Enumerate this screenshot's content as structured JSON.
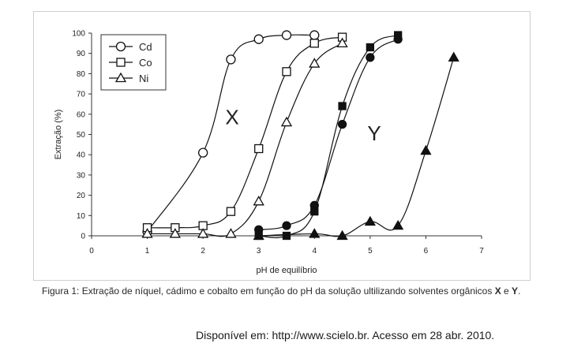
{
  "chart_data": {
    "type": "line",
    "xlabel": "pH de equilíbrio",
    "ylabel": "Extração (%)",
    "xlim": [
      0,
      7
    ],
    "ylim": [
      0,
      100
    ],
    "xticks": [
      0,
      1,
      2,
      3,
      4,
      5,
      6,
      7
    ],
    "yticks": [
      0,
      10,
      20,
      30,
      40,
      50,
      60,
      70,
      80,
      90,
      100
    ],
    "grid": false,
    "legend_position": "top-left",
    "legend": [
      {
        "name": "Cd",
        "marker": "circle-open"
      },
      {
        "name": "Co",
        "marker": "square-open"
      },
      {
        "name": "Ni",
        "marker": "triangle-open"
      }
    ],
    "group_labels": {
      "X": "X",
      "Y": "Y"
    },
    "series": [
      {
        "name": "Cd",
        "group": "X",
        "marker": "circle",
        "filled": false,
        "x": [
          1.0,
          2.0,
          2.5,
          3.0,
          3.5,
          4.0
        ],
        "y": [
          2,
          41,
          87,
          97,
          99,
          99
        ]
      },
      {
        "name": "Co",
        "group": "X",
        "marker": "square",
        "filled": false,
        "x": [
          1.0,
          1.5,
          2.0,
          2.5,
          3.0,
          3.5,
          4.0,
          4.5
        ],
        "y": [
          4,
          4,
          5,
          12,
          43,
          81,
          95,
          98
        ]
      },
      {
        "name": "Ni",
        "group": "X",
        "marker": "triangle",
        "filled": false,
        "x": [
          1.0,
          1.5,
          2.0,
          2.5,
          3.0,
          3.5,
          4.0,
          4.5
        ],
        "y": [
          1,
          1,
          1,
          1,
          17,
          56,
          85,
          95
        ]
      },
      {
        "name": "Cd",
        "group": "Y",
        "marker": "circle",
        "filled": true,
        "x": [
          3.0,
          3.5,
          4.0,
          4.5,
          5.0,
          5.5
        ],
        "y": [
          3,
          5,
          15,
          55,
          88,
          97
        ]
      },
      {
        "name": "Co",
        "group": "Y",
        "marker": "square",
        "filled": true,
        "x": [
          3.0,
          3.5,
          4.0,
          4.5,
          5.0,
          5.5
        ],
        "y": [
          0,
          0,
          12,
          64,
          93,
          99
        ]
      },
      {
        "name": "Ni",
        "group": "Y",
        "marker": "triangle",
        "filled": true,
        "x": [
          3.0,
          4.0,
          4.5,
          5.0,
          5.5,
          6.0,
          6.5
        ],
        "y": [
          0,
          1,
          0,
          7,
          5,
          42,
          88
        ]
      }
    ]
  },
  "caption": {
    "prefix": "Figura 1: Extração de níquel, cádimo e cobalto em função do pH da solução ultilizando solventes orgânicos ",
    "bold1": "X",
    "middle": " e ",
    "bold2": "Y",
    "suffix": "."
  },
  "source_text": "Disponível em: http://www.scielo.br. Acesso em 28 abr. 2010."
}
